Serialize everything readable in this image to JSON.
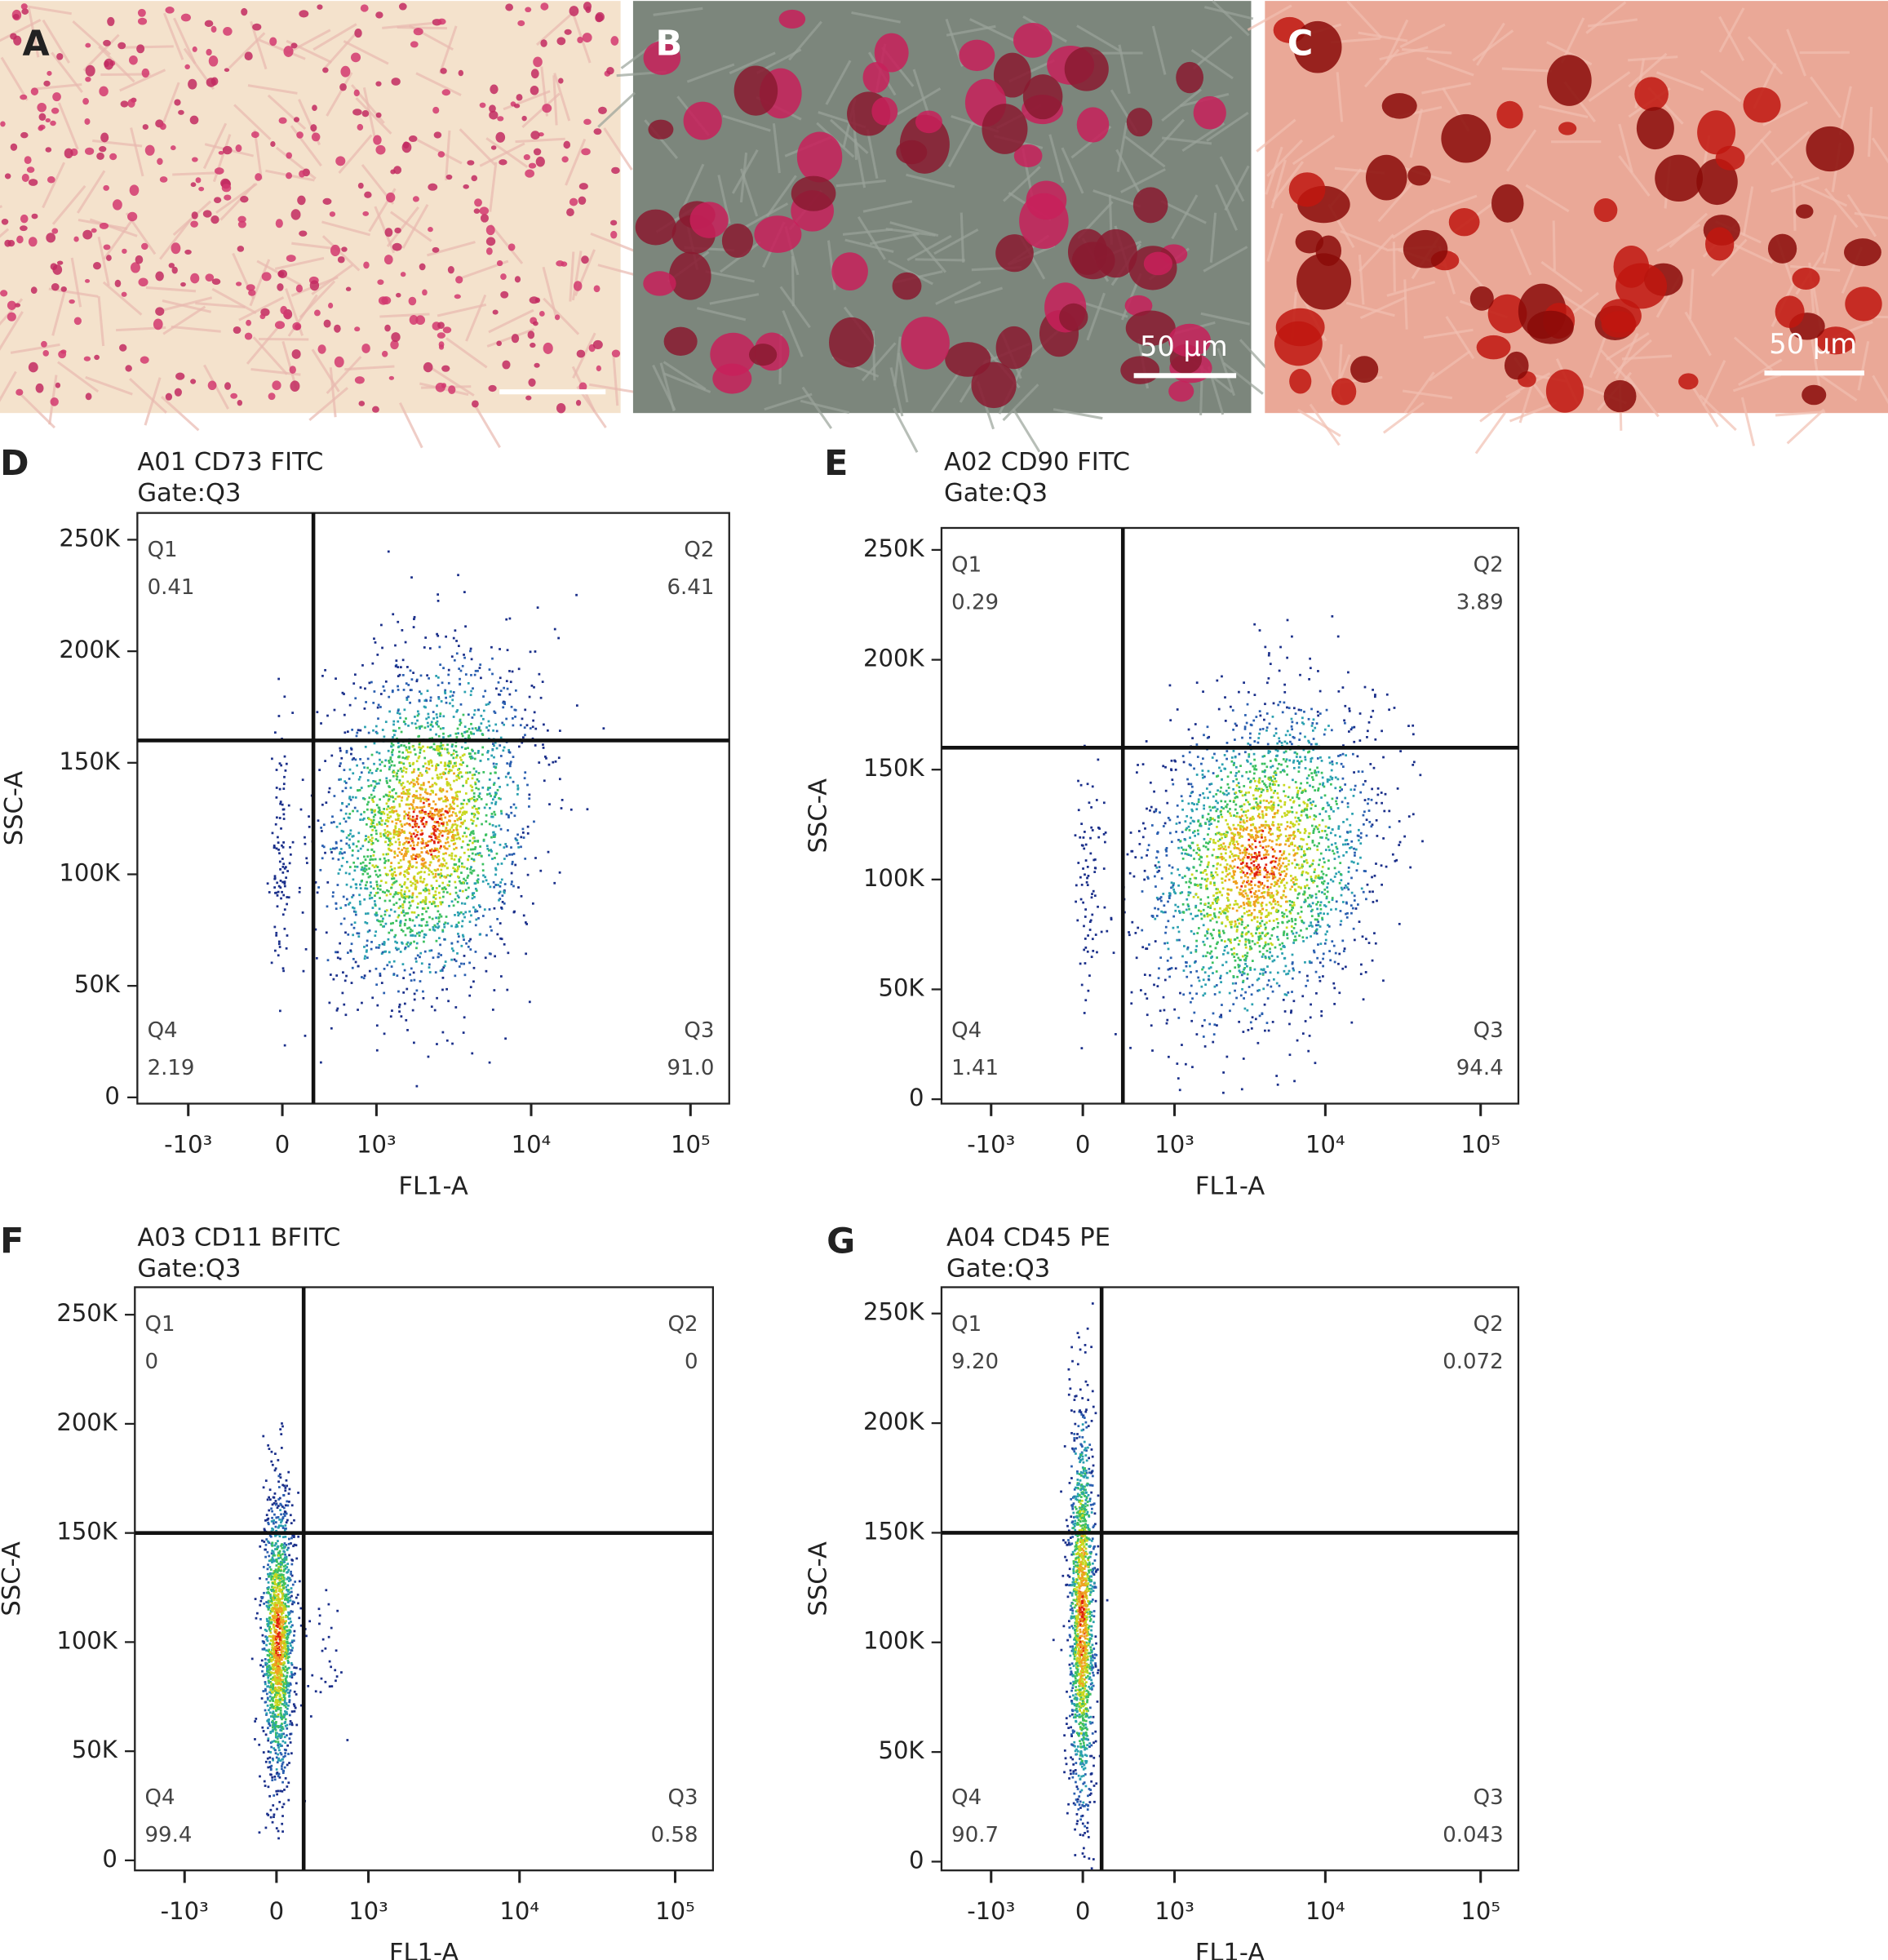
{
  "images": [
    {
      "label": "A"
    },
    {
      "label": "B",
      "scale_bar": "50 μm"
    },
    {
      "label": "C",
      "scale_bar": "50 μm"
    }
  ],
  "chart_data": [
    {
      "type": "scatter",
      "panel_label": "D",
      "title": "A01 CD73 FITC",
      "subtitle": "Gate:Q3",
      "x_label": "FL1-A",
      "y_label": "SSC-A",
      "x_scale": "biexponential",
      "xlim": [
        -2200,
        175000
      ],
      "xticks": [
        {
          "value": -1000,
          "label": "-10³"
        },
        0,
        {
          "value": 1000,
          "label": "10³"
        },
        {
          "value": 10000,
          "label": "10⁴"
        },
        {
          "value": 100000,
          "label": "10⁵"
        }
      ],
      "ylim": [
        -2800,
        262000
      ],
      "yticks": [
        0,
        {
          "value": 50000,
          "label": "50K"
        },
        {
          "value": 100000,
          "label": "100K"
        },
        {
          "value": 150000,
          "label": "150K"
        },
        {
          "value": 200000,
          "label": "200K"
        },
        {
          "value": 250000,
          "label": "250K"
        }
      ],
      "gate_x": 255,
      "gate_y": 160000,
      "quadrants": [
        {
          "name": "Q1",
          "value": "0.41"
        },
        {
          "name": "Q2",
          "value": "6.41"
        },
        {
          "name": "Q3",
          "value": "91.0"
        },
        {
          "name": "Q4",
          "value": "2.19"
        }
      ]
    },
    {
      "type": "scatter",
      "panel_label": "E",
      "title": "A02 CD90 FITC",
      "subtitle": "Gate:Q3",
      "x_label": "FL1-A",
      "y_label": "SSC-A",
      "x_scale": "biexponential",
      "xlim": [
        -2200,
        175000
      ],
      "xticks": [
        {
          "value": -1000,
          "label": "-10³"
        },
        0,
        {
          "value": 1000,
          "label": "10³"
        },
        {
          "value": 10000,
          "label": "10⁴"
        },
        {
          "value": 100000,
          "label": "10⁵"
        }
      ],
      "ylim": [
        -2000,
        260000
      ],
      "yticks": [
        0,
        {
          "value": 50000,
          "label": "50K"
        },
        {
          "value": 100000,
          "label": "100K"
        },
        {
          "value": 150000,
          "label": "150K"
        },
        {
          "value": 200000,
          "label": "200K"
        },
        {
          "value": 250000,
          "label": "250K"
        }
      ],
      "gate_x": 346,
      "gate_y": 160000,
      "quadrants": [
        {
          "name": "Q1",
          "value": "0.29"
        },
        {
          "name": "Q2",
          "value": "3.89"
        },
        {
          "name": "Q3",
          "value": "94.4"
        },
        {
          "name": "Q4",
          "value": "1.41"
        }
      ]
    },
    {
      "type": "scatter",
      "panel_label": "F",
      "title": "A03 CD11 BFITC",
      "subtitle": "Gate:Q3",
      "x_label": "FL1-A",
      "y_label": "SSC-A",
      "x_scale": "biexponential",
      "xlim": [
        -2200,
        175000
      ],
      "xticks": [
        {
          "value": -1000,
          "label": "-10³"
        },
        0,
        {
          "value": 1000,
          "label": "10³"
        },
        {
          "value": 10000,
          "label": "10⁴"
        },
        {
          "value": 100000,
          "label": "10⁵"
        }
      ],
      "ylim": [
        -4600,
        262600
      ],
      "yticks": [
        0,
        {
          "value": 50000,
          "label": "50K"
        },
        {
          "value": 100000,
          "label": "100K"
        },
        {
          "value": 150000,
          "label": "150K"
        },
        {
          "value": 200000,
          "label": "200K"
        },
        {
          "value": 250000,
          "label": "250K"
        }
      ],
      "gate_x": 227,
      "gate_y": 150000,
      "quadrants": [
        {
          "name": "Q1",
          "value": "0"
        },
        {
          "name": "Q2",
          "value": "0"
        },
        {
          "name": "Q3",
          "value": "0.58"
        },
        {
          "name": "Q4",
          "value": "99.4"
        }
      ]
    },
    {
      "type": "scatter",
      "panel_label": "G",
      "title": "A04 CD45 PE",
      "subtitle": "Gate:Q3",
      "x_label": "FL1-A",
      "y_label": "SSC-A",
      "x_scale": "biexponential",
      "xlim": [
        -2200,
        175000
      ],
      "xticks": [
        {
          "value": -1000,
          "label": "-10³"
        },
        0,
        {
          "value": 1000,
          "label": "10³"
        },
        {
          "value": 10000,
          "label": "10⁴"
        },
        {
          "value": 100000,
          "label": "10⁵"
        }
      ],
      "ylim": [
        -4000,
        262000
      ],
      "yticks": [
        0,
        {
          "value": 50000,
          "label": "50K"
        },
        {
          "value": 100000,
          "label": "100K"
        },
        {
          "value": 150000,
          "label": "150K"
        },
        {
          "value": 200000,
          "label": "200K"
        },
        {
          "value": 250000,
          "label": "250K"
        }
      ],
      "gate_x": 155,
      "gate_y": 150000,
      "quadrants": [
        {
          "name": "Q1",
          "value": "9.20"
        },
        {
          "name": "Q2",
          "value": "0.072"
        },
        {
          "name": "Q3",
          "value": "0.043"
        },
        {
          "name": "Q4",
          "value": "90.7"
        }
      ]
    }
  ]
}
